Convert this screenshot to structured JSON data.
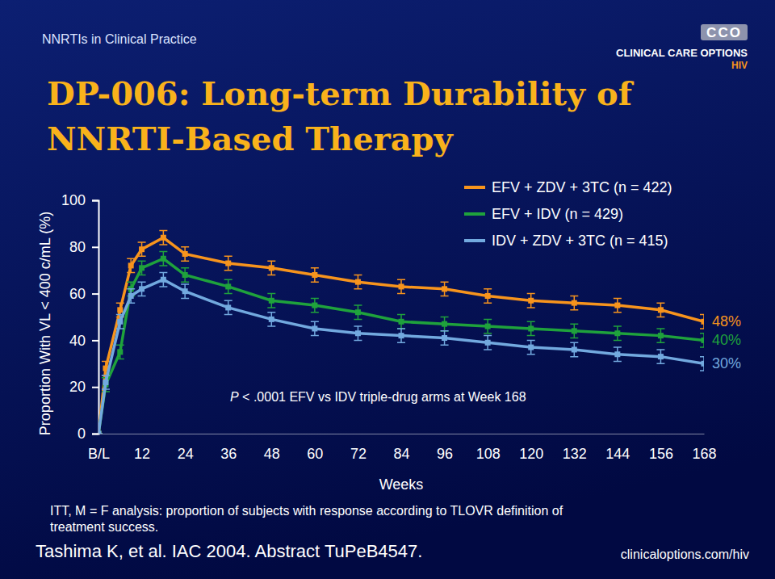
{
  "slide": {
    "header": "NNRTIs in Clinical Practice",
    "logo_mark": "CCO",
    "logo_name": "CLINICAL CARE OPTIONS",
    "logo_tag": "HIV",
    "footnote": "ITT, M = F analysis: proportion of subjects with response according to TLOVR definition of treatment success.",
    "source": "Tashima K, et al. IAC 2004. Abstract TuPeB4547.",
    "url": "clinicaloptions.com/hiv"
  },
  "chart_data": {
    "type": "line",
    "title": "DP-006: Long-term Durability of NNRTI-Based Therapy",
    "x_label": "Weeks",
    "y_label": "Proportion With VL < 400 c/mL (%)",
    "x": [
      0,
      2,
      6,
      9,
      12,
      18,
      24,
      36,
      48,
      60,
      72,
      84,
      96,
      108,
      120,
      132,
      144,
      156,
      168
    ],
    "xlim": [
      0,
      168
    ],
    "xticks": [
      {
        "value": 0,
        "label": "B/L"
      },
      12,
      24,
      36,
      48,
      60,
      72,
      84,
      96,
      108,
      120,
      132,
      144,
      156,
      168
    ],
    "ylim": [
      0,
      100
    ],
    "yticks": [
      0,
      20,
      40,
      60,
      80,
      100
    ],
    "grid": false,
    "legend": "upper right",
    "marker": "square",
    "line_style": "solid",
    "annotations": [
      {
        "text": "P < .0001 EFV vs IDV triple-drug arms at Week 168"
      }
    ],
    "series": [
      {
        "name": "EFV + ZDV + 3TC (n = 422)",
        "color": "#f7941d",
        "values": [
          0,
          28,
          53,
          72,
          79,
          84,
          77,
          73,
          71,
          68,
          65,
          63,
          62,
          59,
          57,
          56,
          55,
          53,
          48
        ],
        "errors": [
          0,
          3,
          3,
          3,
          3,
          3,
          3,
          3,
          3,
          3,
          3,
          3,
          3,
          3,
          3,
          3,
          3,
          3,
          3
        ],
        "value_labels": [
          null,
          null,
          null,
          null,
          null,
          null,
          null,
          null,
          null,
          null,
          null,
          null,
          null,
          null,
          null,
          null,
          null,
          null,
          "48%"
        ]
      },
      {
        "name": "EFV + IDV (n = 429)",
        "color": "#1fa23c",
        "values": [
          0,
          21,
          35,
          62,
          71,
          75,
          68,
          63,
          57,
          55,
          52,
          48,
          47,
          46,
          45,
          44,
          43,
          42,
          40
        ],
        "errors": [
          0,
          3,
          3,
          3,
          3,
          3,
          3,
          3,
          3,
          3,
          3,
          3,
          3,
          3,
          3,
          3,
          3,
          3,
          3
        ],
        "value_labels": [
          null,
          null,
          null,
          null,
          null,
          null,
          null,
          null,
          null,
          null,
          null,
          null,
          null,
          null,
          null,
          null,
          null,
          null,
          "40%"
        ]
      },
      {
        "name": "IDV + ZDV + 3TC (n = 415)",
        "color": "#72a9df",
        "values": [
          0,
          22,
          48,
          59,
          62,
          66,
          61,
          54,
          49,
          45,
          43,
          42,
          41,
          39,
          37,
          36,
          34,
          33,
          30
        ],
        "errors": [
          0,
          3,
          3,
          3,
          3,
          3,
          3,
          3,
          3,
          3,
          3,
          3,
          3,
          3,
          3,
          3,
          3,
          3,
          3
        ],
        "value_labels": [
          null,
          null,
          null,
          null,
          null,
          null,
          null,
          null,
          null,
          null,
          null,
          null,
          null,
          null,
          null,
          null,
          null,
          null,
          "30%"
        ]
      }
    ]
  }
}
